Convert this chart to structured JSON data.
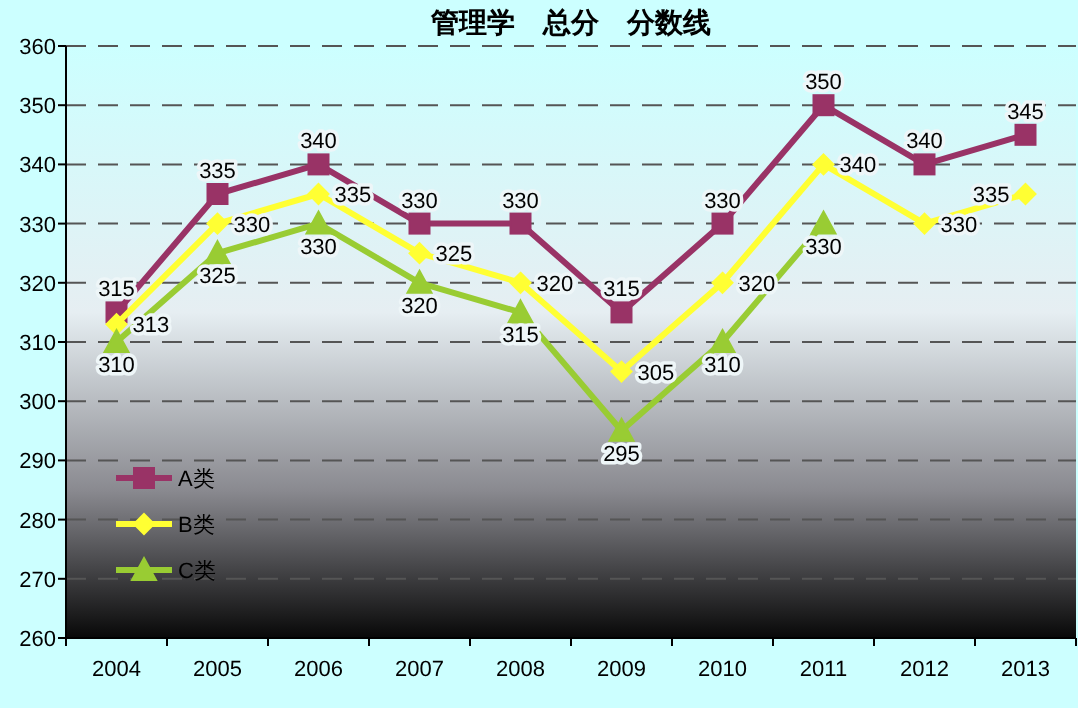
{
  "chart_data": {
    "type": "line",
    "title": "管理学　总分　分数线",
    "categories": [
      "2004",
      "2005",
      "2006",
      "2007",
      "2008",
      "2009",
      "2010",
      "2011",
      "2012",
      "2013"
    ],
    "series": [
      {
        "name": "A类",
        "color": "#993366",
        "marker": "square",
        "values": [
          315,
          335,
          340,
          330,
          330,
          315,
          330,
          350,
          340,
          345
        ]
      },
      {
        "name": "B类",
        "color": "#ffff33",
        "marker": "diamond",
        "values": [
          313,
          330,
          335,
          325,
          320,
          305,
          320,
          340,
          330,
          335
        ]
      },
      {
        "name": "C类",
        "color": "#99cc33",
        "marker": "triangle",
        "values": [
          310,
          325,
          330,
          320,
          315,
          295,
          310,
          330,
          null,
          null
        ]
      }
    ],
    "ylim": [
      260,
      360
    ],
    "yticks": [
      260,
      270,
      280,
      290,
      300,
      310,
      320,
      330,
      340,
      350,
      360
    ],
    "grid": "y",
    "legend": "bottom left",
    "data_labels": true
  }
}
